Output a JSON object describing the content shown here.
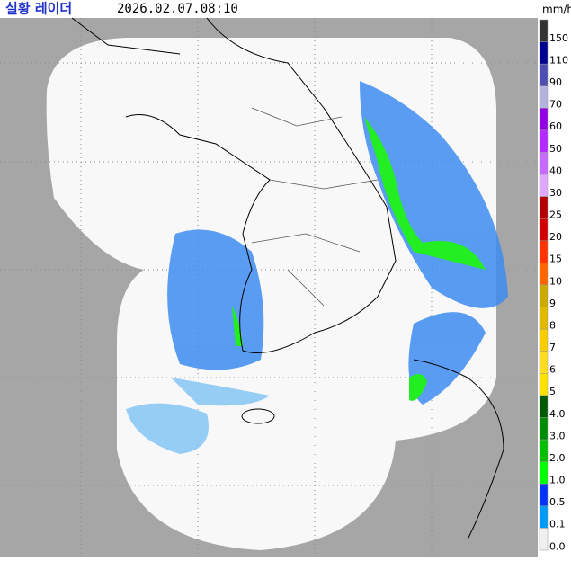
{
  "header": {
    "title": "실황 레이더",
    "time": "2026.02.07.08:10",
    "unit": "mm/h"
  },
  "legend": [
    {
      "label": "150",
      "color": "#333333"
    },
    {
      "label": "110",
      "color": "#000390"
    },
    {
      "label": "90",
      "color": "#4c4eb1"
    },
    {
      "label": "70",
      "color": "#b3b4de"
    },
    {
      "label": "60",
      "color": "#9300e4"
    },
    {
      "label": "50",
      "color": "#b329ff"
    },
    {
      "label": "40",
      "color": "#c969ff"
    },
    {
      "label": "30",
      "color": "#e0a9ff"
    },
    {
      "label": "25",
      "color": "#b40000"
    },
    {
      "label": "20",
      "color": "#d20000"
    },
    {
      "label": "15",
      "color": "#ff3200"
    },
    {
      "label": "10",
      "color": "#ff6600"
    },
    {
      "label": "9",
      "color": "#ccaa00"
    },
    {
      "label": "8",
      "color": "#e0b900"
    },
    {
      "label": "7",
      "color": "#f9cd00"
    },
    {
      "label": "6",
      "color": "#ffdc1f"
    },
    {
      "label": "5",
      "color": "#ffe100"
    },
    {
      "label": "4.0",
      "color": "#005a00"
    },
    {
      "label": "3.0",
      "color": "#008c00"
    },
    {
      "label": "2.0",
      "color": "#00be00"
    },
    {
      "label": "1.0",
      "color": "#00ff00"
    },
    {
      "label": "0.5",
      "color": "#0033f5"
    },
    {
      "label": "0.1",
      "color": "#009bf5"
    },
    {
      "label": "0.0",
      "color": "#f0f0f0"
    }
  ]
}
